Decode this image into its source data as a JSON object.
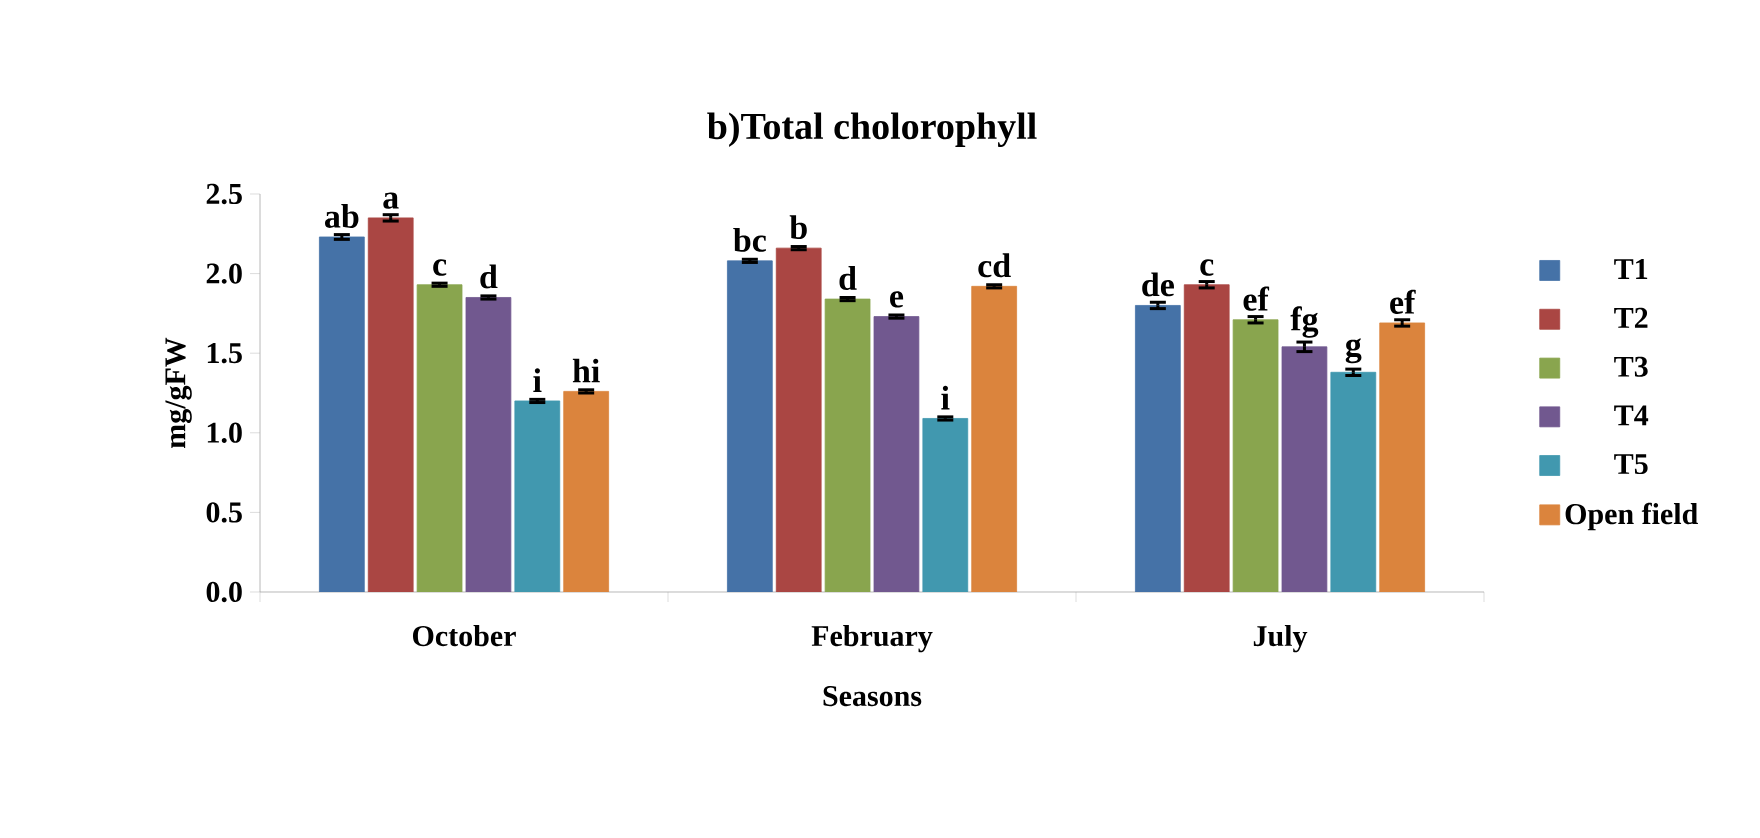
{
  "chart_data": {
    "type": "bar",
    "title": "b)Total cholorophyll",
    "xlabel": "Seasons",
    "ylabel": "mg/gFW",
    "categories": [
      "October",
      "February",
      "July"
    ],
    "series": [
      {
        "name": "T1",
        "color": "#4572a7",
        "values": [
          2.23,
          2.08,
          1.8
        ],
        "errors": [
          0.015,
          0.01,
          0.02
        ],
        "value_labels": [
          "ab",
          "bc",
          "de"
        ]
      },
      {
        "name": "T2",
        "color": "#aa4643",
        "values": [
          2.35,
          2.16,
          1.93
        ],
        "errors": [
          0.02,
          0.01,
          0.02
        ],
        "value_labels": [
          "a",
          "b",
          "c"
        ]
      },
      {
        "name": "T3",
        "color": "#89a54e",
        "values": [
          1.93,
          1.84,
          1.71
        ],
        "errors": [
          0.01,
          0.01,
          0.02
        ],
        "value_labels": [
          "c",
          "d",
          "ef"
        ]
      },
      {
        "name": "T4",
        "color": "#71588f",
        "values": [
          1.85,
          1.73,
          1.54
        ],
        "errors": [
          0.01,
          0.01,
          0.03
        ],
        "value_labels": [
          "d",
          "e",
          "fg"
        ]
      },
      {
        "name": "T5",
        "color": "#4198af",
        "values": [
          1.2,
          1.09,
          1.38
        ],
        "errors": [
          0.01,
          0.01,
          0.02
        ],
        "value_labels": [
          "i",
          "i",
          "g"
        ]
      },
      {
        "name": "Open field",
        "color": "#db843d",
        "values": [
          1.26,
          1.92,
          1.69
        ],
        "errors": [
          0.01,
          0.01,
          0.02
        ],
        "value_labels": [
          "hi",
          "cd",
          "ef"
        ]
      }
    ],
    "ylim": [
      0,
      2.5
    ],
    "yticks": [
      {
        "value": 0,
        "label": "0.0"
      },
      {
        "value": 0.5,
        "label": "0.5"
      },
      {
        "value": 1,
        "label": "1.0"
      },
      {
        "value": 1.5,
        "label": "1.5"
      },
      {
        "value": 2,
        "label": "2.0"
      },
      {
        "value": 2.5,
        "label": "2.5"
      }
    ],
    "grid": false,
    "legend": "right"
  }
}
